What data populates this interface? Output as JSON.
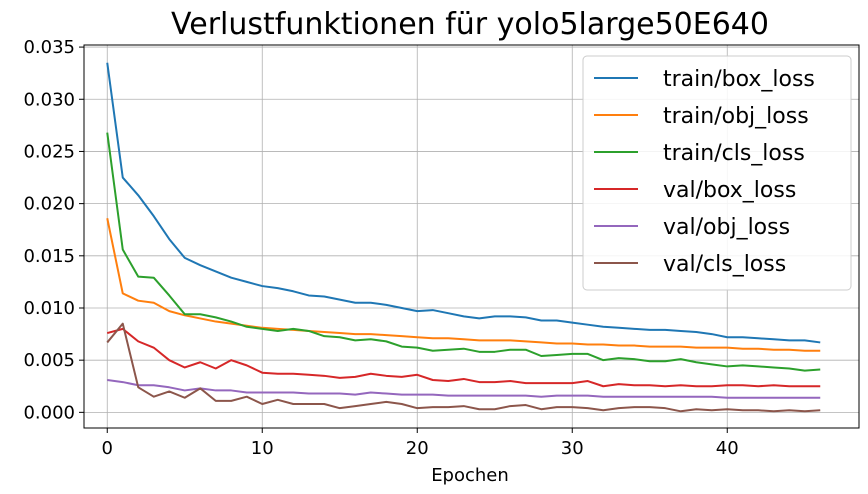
{
  "chart_data": {
    "type": "line",
    "title": "Verlustfunktionen für yolo5large50E640",
    "xlabel": "Epochen",
    "ylabel": "",
    "xlim": [
      -1.5,
      48.5
    ],
    "ylim": [
      -0.0015,
      0.0352
    ],
    "x_ticks": [
      0,
      10,
      20,
      30,
      40
    ],
    "x_tick_labels": [
      "0",
      "10",
      "20",
      "30",
      "40"
    ],
    "y_ticks": [
      0.0,
      0.005,
      0.01,
      0.015,
      0.02,
      0.025,
      0.03,
      0.035
    ],
    "y_tick_labels": [
      "0.000",
      "0.005",
      "0.010",
      "0.015",
      "0.020",
      "0.025",
      "0.030",
      "0.035"
    ],
    "grid": true,
    "legend_position": "top-right",
    "x": [
      0,
      1,
      2,
      3,
      4,
      5,
      6,
      7,
      8,
      9,
      10,
      11,
      12,
      13,
      14,
      15,
      16,
      17,
      18,
      19,
      20,
      21,
      22,
      23,
      24,
      25,
      26,
      27,
      28,
      29,
      30,
      31,
      32,
      33,
      34,
      35,
      36,
      37,
      38,
      39,
      40,
      41,
      42,
      43,
      44,
      45,
      46
    ],
    "series": [
      {
        "name": "train/box_loss",
        "color": "#1f77b4",
        "values": [
          0.0335,
          0.0225,
          0.0208,
          0.0188,
          0.0166,
          0.0148,
          0.0141,
          0.0135,
          0.0129,
          0.0125,
          0.0121,
          0.0119,
          0.0116,
          0.0112,
          0.0111,
          0.0108,
          0.0105,
          0.0105,
          0.0103,
          0.01,
          0.0097,
          0.0098,
          0.0095,
          0.0092,
          0.009,
          0.0092,
          0.0092,
          0.0091,
          0.0088,
          0.0088,
          0.0086,
          0.0084,
          0.0082,
          0.0081,
          0.008,
          0.0079,
          0.0079,
          0.0078,
          0.0077,
          0.0075,
          0.0072,
          0.0072,
          0.0071,
          0.007,
          0.0069,
          0.0069,
          0.0067
        ]
      },
      {
        "name": "train/obj_loss",
        "color": "#ff7f0e",
        "values": [
          0.0186,
          0.0114,
          0.0107,
          0.0105,
          0.0097,
          0.0093,
          0.009,
          0.0087,
          0.0085,
          0.0083,
          0.0081,
          0.008,
          0.0079,
          0.0078,
          0.0077,
          0.0076,
          0.0075,
          0.0075,
          0.0074,
          0.0073,
          0.0072,
          0.0071,
          0.0071,
          0.007,
          0.0069,
          0.0069,
          0.0069,
          0.0068,
          0.0067,
          0.0066,
          0.0066,
          0.0065,
          0.0065,
          0.0064,
          0.0064,
          0.0063,
          0.0063,
          0.0063,
          0.0062,
          0.0062,
          0.0062,
          0.0061,
          0.0061,
          0.006,
          0.006,
          0.0059,
          0.0059
        ]
      },
      {
        "name": "train/cls_loss",
        "color": "#2ca02c",
        "values": [
          0.0268,
          0.0156,
          0.013,
          0.0129,
          0.0112,
          0.0094,
          0.0094,
          0.0091,
          0.0087,
          0.0082,
          0.008,
          0.0078,
          0.008,
          0.0078,
          0.0073,
          0.0072,
          0.0069,
          0.007,
          0.0068,
          0.0063,
          0.0062,
          0.0059,
          0.006,
          0.0061,
          0.0058,
          0.0058,
          0.006,
          0.006,
          0.0054,
          0.0055,
          0.0056,
          0.0056,
          0.005,
          0.0052,
          0.0051,
          0.0049,
          0.0049,
          0.0051,
          0.0048,
          0.0046,
          0.0044,
          0.0045,
          0.0044,
          0.0043,
          0.0042,
          0.004,
          0.0041
        ]
      },
      {
        "name": "val/box_loss",
        "color": "#d62728",
        "values": [
          0.0076,
          0.008,
          0.0068,
          0.0062,
          0.005,
          0.0043,
          0.0048,
          0.0042,
          0.005,
          0.0045,
          0.0038,
          0.0037,
          0.0037,
          0.0036,
          0.0035,
          0.0033,
          0.0034,
          0.0037,
          0.0035,
          0.0034,
          0.0036,
          0.0031,
          0.003,
          0.0032,
          0.0029,
          0.0029,
          0.003,
          0.0028,
          0.0028,
          0.0028,
          0.0028,
          0.003,
          0.0025,
          0.0027,
          0.0026,
          0.0026,
          0.0025,
          0.0026,
          0.0025,
          0.0025,
          0.0026,
          0.0026,
          0.0025,
          0.0026,
          0.0025,
          0.0025,
          0.0025
        ]
      },
      {
        "name": "val/obj_loss",
        "color": "#9467bd",
        "values": [
          0.0031,
          0.0029,
          0.0026,
          0.0026,
          0.0024,
          0.0021,
          0.0023,
          0.0021,
          0.0021,
          0.0019,
          0.0019,
          0.0019,
          0.0019,
          0.0018,
          0.0018,
          0.0018,
          0.0017,
          0.0019,
          0.0018,
          0.0017,
          0.0017,
          0.0017,
          0.0016,
          0.0016,
          0.0016,
          0.0016,
          0.0016,
          0.0016,
          0.0015,
          0.0016,
          0.0016,
          0.0016,
          0.0015,
          0.0015,
          0.0015,
          0.0015,
          0.0015,
          0.0015,
          0.0015,
          0.0015,
          0.0014,
          0.0014,
          0.0014,
          0.0014,
          0.0014,
          0.0014,
          0.0014
        ]
      },
      {
        "name": "val/cls_loss",
        "color": "#8c564b",
        "values": [
          0.0067,
          0.0085,
          0.0024,
          0.0015,
          0.002,
          0.0014,
          0.0023,
          0.0011,
          0.0011,
          0.0015,
          0.0008,
          0.0012,
          0.0008,
          0.0008,
          0.0008,
          0.0004,
          0.0006,
          0.0008,
          0.001,
          0.0008,
          0.0004,
          0.0005,
          0.0005,
          0.0006,
          0.0003,
          0.0003,
          0.0006,
          0.0007,
          0.0003,
          0.0005,
          0.0005,
          0.0004,
          0.0002,
          0.0004,
          0.0005,
          0.0005,
          0.0004,
          0.0001,
          0.0003,
          0.0002,
          0.0003,
          0.0002,
          0.0002,
          0.0001,
          0.0002,
          0.0001,
          0.0002
        ]
      }
    ]
  }
}
